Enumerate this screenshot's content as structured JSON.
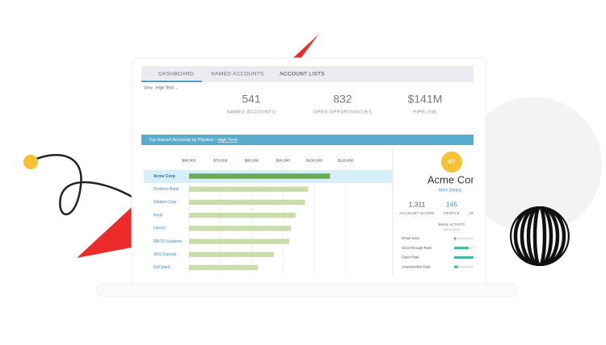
{
  "tabs": [
    "DASHBOARD",
    "NAMED ACCOUNTS",
    "ACCOUNT LISTS"
  ],
  "view": {
    "label": "View:",
    "value": "High Tech ⌄"
  },
  "stats": [
    {
      "value": "541",
      "label": "NAMED ACCOUNTS"
    },
    {
      "value": "832",
      "label": "OPEN OPPORTUNITIES"
    },
    {
      "value": "$141M",
      "label": "PIPELINE"
    }
  ],
  "chart_data": {
    "type": "bar",
    "orientation": "horizontal",
    "title": "Top Named Accounts by Pipeline - ",
    "title_link": "High Tech",
    "categories": [
      "Acme Corp",
      "Contoso Bank",
      "Globex Corp",
      "Hooli",
      "Initech",
      "MRTO Systems",
      "SES Exports",
      "SoCalled"
    ],
    "values": [
      105000,
      98000,
      97000,
      94000,
      92500,
      92000,
      87000,
      82000
    ],
    "color": "#c9dcab",
    "highlight_index": 0,
    "highlight_color": "#6aaa55",
    "xlim": [
      60000,
      125000
    ],
    "xticks": [
      {
        "value": 60000,
        "label": "$60,000"
      },
      {
        "value": 70000,
        "label": "$70,000"
      },
      {
        "value": 80000,
        "label": "$80,000"
      },
      {
        "value": 90000,
        "label": "$90,000"
      },
      {
        "value": 100000,
        "label": "$100,000"
      },
      {
        "value": 110000,
        "label": "$110,000"
      }
    ],
    "grid": true
  },
  "account": {
    "badge": "IST",
    "name": "Acme Cor",
    "link": "More Details",
    "metrics": [
      {
        "value": "1,311",
        "label": "ACCOUNT SCORE"
      },
      {
        "value": "145",
        "label": "PEOPLE"
      },
      {
        "label": "OP"
      }
    ],
    "email_activity": {
      "title": "EMAIL ACTIVITY",
      "subtitle": "last 30 days",
      "rows": [
        {
          "label": "Email Sent",
          "value": 5
        },
        {
          "label": "Click-through Rate",
          "value": 45
        },
        {
          "label": "Open Rate",
          "value": 60
        },
        {
          "label": "Unsubscribe Rate",
          "value": 12
        }
      ]
    }
  }
}
